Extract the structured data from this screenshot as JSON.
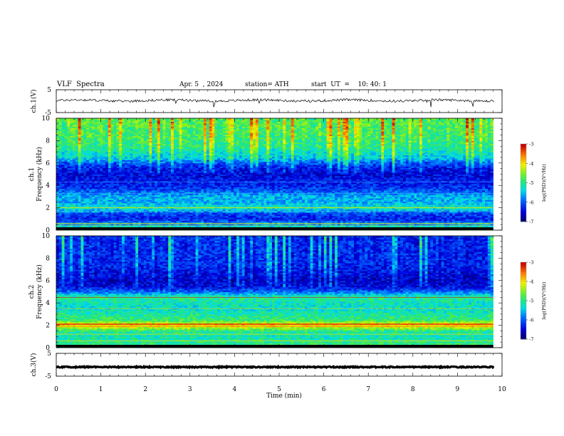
{
  "header": {
    "title": "VLF  Spectra",
    "date": "Apr. 5  , 2024",
    "station": "station= ATH",
    "start_ut": "start  UT  =    10: 40: 1"
  },
  "chart_data": [
    {
      "type": "line",
      "panel": "ch1-waveform",
      "ylabel": "ch.1(V)",
      "yticks": [
        "5",
        "-5"
      ],
      "ylim": [
        -5,
        5
      ],
      "xlim": [
        0,
        10
      ],
      "series": [
        {
          "mean": 0.3,
          "range": [
            -1.5,
            1.5
          ],
          "color": "#000000"
        }
      ]
    },
    {
      "type": "heatmap",
      "panel": "ch1-spectrogram",
      "ylabel": "ch.1 Frequency (kHz)",
      "yticks": [
        "0",
        "2",
        "4",
        "6",
        "8",
        "10"
      ],
      "ylim": [
        0,
        10
      ],
      "xlim": [
        0,
        9.8
      ],
      "colorbar": {
        "label": "log(PSD)(V²/Hz)",
        "ticks": [
          "-3",
          "-4",
          "-5",
          "-6",
          "-7"
        ],
        "range": [
          -7,
          -3
        ]
      },
      "profile_khz": [
        0,
        0.5,
        1,
        1.5,
        2,
        2.5,
        3,
        3.5,
        4,
        4.5,
        5,
        5.5,
        6,
        6.5,
        7,
        7.5,
        8,
        8.5,
        9,
        9.5,
        10
      ],
      "profile_log_psd": [
        -4.5,
        -5.6,
        -6.3,
        -6.1,
        -5.2,
        -5.6,
        -5.6,
        -6.0,
        -6.3,
        -6.4,
        -6.5,
        -6.4,
        -6.0,
        -5.4,
        -5.2,
        -5.0,
        -4.9,
        -4.8,
        -4.8,
        -4.7,
        -4.7
      ]
    },
    {
      "type": "heatmap",
      "panel": "ch2-spectrogram",
      "ylabel": "ch.2 Frequency (kHz)",
      "yticks": [
        "0",
        "2",
        "4",
        "6",
        "8",
        "10"
      ],
      "ylim": [
        0,
        10
      ],
      "xlim": [
        0,
        9.8
      ],
      "colorbar": {
        "label": "log(PSD)(V²/Hz)",
        "ticks": [
          "-3",
          "-4",
          "-5",
          "-6",
          "-7"
        ],
        "range": [
          -7,
          -3
        ]
      },
      "profile_khz": [
        0,
        0.5,
        1,
        1.5,
        2,
        2.5,
        3,
        3.5,
        4,
        4.5,
        5,
        5.5,
        6,
        6.5,
        7,
        7.5,
        8,
        8.5,
        9,
        9.5,
        10
      ],
      "profile_log_psd": [
        -4.8,
        -5.0,
        -5.2,
        -5.0,
        -3.8,
        -4.9,
        -5.1,
        -5.3,
        -5.2,
        -5.0,
        -5.9,
        -6.5,
        -6.6,
        -6.5,
        -6.4,
        -6.3,
        -6.3,
        -6.3,
        -6.3,
        -6.3,
        -6.3
      ]
    },
    {
      "type": "line",
      "panel": "ch3-waveform",
      "ylabel": "ch.3(V)",
      "yticks": [
        "5",
        "-5"
      ],
      "ylim": [
        -5,
        5
      ],
      "xlabel": "Time  (min)",
      "xticks": [
        "0",
        "1",
        "2",
        "3",
        "4",
        "5",
        "6",
        "7",
        "8",
        "9",
        "10"
      ],
      "xlim": [
        0,
        10
      ],
      "series": [
        {
          "mean": -1.0,
          "range": [
            -1.3,
            -0.7
          ],
          "color": "#000000"
        }
      ]
    }
  ]
}
